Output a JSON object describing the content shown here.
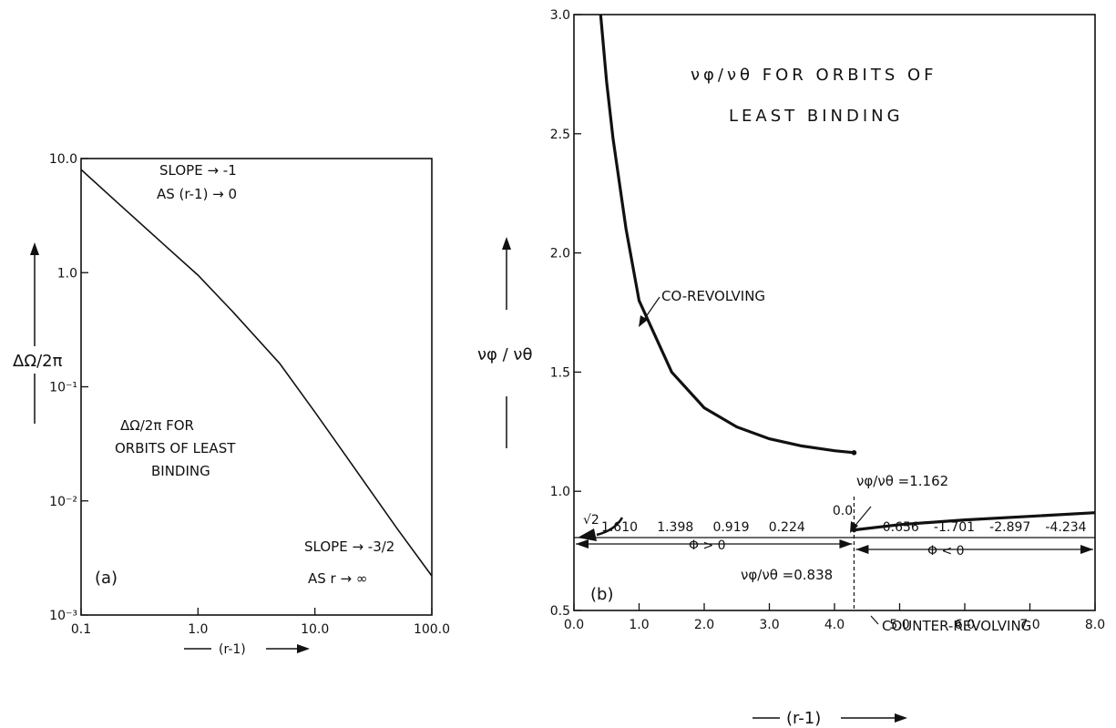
{
  "chart_data": [
    {
      "panel_label": "(a)",
      "type": "line",
      "title_lines": [
        "ΔΩ/2π  FOR",
        "ORBITS OF LEAST",
        "BINDING"
      ],
      "xlabel": "(r-1)",
      "ylabel": "ΔΩ/2π",
      "x_scale": "log",
      "y_scale": "log",
      "xlim": [
        0.1,
        100.0
      ],
      "ylim": [
        0.001,
        10.0
      ],
      "x_ticks": [
        "0.1",
        "1.0",
        "10.0",
        "100.0"
      ],
      "y_ticks": [
        "10⁻³",
        "10⁻²",
        "10⁻¹",
        "1.0",
        "10.0"
      ],
      "annotations": [
        "SLOPE → -1",
        "AS (r-1) → 0",
        "SLOPE → -3/2",
        "AS r → ∞"
      ],
      "series": [
        {
          "x": [
            0.1,
            0.2,
            0.5,
            1.0,
            2.0,
            5.0,
            10.0,
            20.0,
            50.0,
            100.0
          ],
          "y": [
            8.0,
            4.2,
            1.8,
            0.95,
            0.45,
            0.16,
            0.06,
            0.022,
            0.0058,
            0.0022
          ]
        }
      ]
    },
    {
      "panel_label": "(b)",
      "type": "line",
      "title_lines": [
        "νφ/νθ  FOR  ORBITS  OF",
        "LEAST  BINDING"
      ],
      "xlabel": "(r-1)",
      "ylabel": "νφ / νθ",
      "xlim": [
        0.0,
        8.0
      ],
      "ylim": [
        0.5,
        3.0
      ],
      "x_ticks": [
        "0.0",
        "1.0",
        "2.0",
        "3.0",
        "4.0",
        "5.0",
        "6.0",
        "7.0",
        "8.0"
      ],
      "y_ticks": [
        "0.5",
        "1.0",
        "1.5",
        "2.0",
        "2.5",
        "3.0"
      ],
      "phi_scale": [
        "1.610",
        "1.398",
        "0.919",
        "0.224",
        "0.0",
        "-0.656",
        "-1.701",
        "-2.897",
        "-4.234"
      ],
      "region_labels": [
        "Φ > 0",
        "Φ < 0"
      ],
      "annotations": [
        "CO-REVOLVING",
        "COUNTER-REVOLVING",
        "νφ/νθ =1.162",
        "νφ/νθ =0.838",
        "√2"
      ],
      "series": [
        {
          "name": "CO-REVOLVING",
          "x": [
            0.41,
            0.5,
            0.6,
            0.8,
            1.0,
            1.5,
            2.0,
            2.5,
            3.0,
            3.5,
            4.0,
            4.3
          ],
          "y": [
            3.0,
            2.72,
            2.48,
            2.1,
            1.8,
            1.5,
            1.35,
            1.27,
            1.22,
            1.19,
            1.17,
            1.162
          ]
        },
        {
          "name": "COUNTER-REVOLVING",
          "x": [
            4.3,
            5.0,
            6.0,
            7.0,
            8.0
          ],
          "y": [
            0.838,
            0.86,
            0.88,
            0.895,
            0.91
          ]
        }
      ]
    }
  ]
}
